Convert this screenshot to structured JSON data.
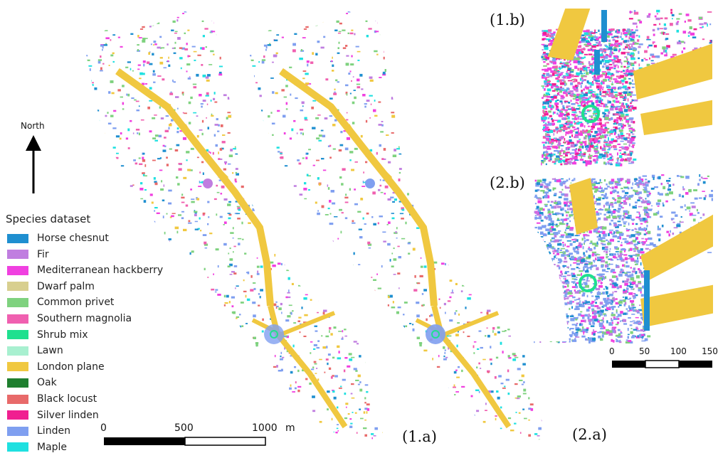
{
  "north_arrow": {
    "label": "North"
  },
  "legend": {
    "title": "Species dataset",
    "items": [
      {
        "label": "Horse chesnut",
        "color": "#1f8fd0"
      },
      {
        "label": "Fir",
        "color": "#c07ee0"
      },
      {
        "label": "Mediterranean hackberry",
        "color": "#f040e0"
      },
      {
        "label": "Dwarf palm",
        "color": "#d8cf8f"
      },
      {
        "label": "Common privet",
        "color": "#7fd27f"
      },
      {
        "label": "Southern magnolia",
        "color": "#f060b0"
      },
      {
        "label": "Shrub mix",
        "color": "#1fe08f"
      },
      {
        "label": "Lawn",
        "color": "#a8f0d0"
      },
      {
        "label": "London plane",
        "color": "#f0c840"
      },
      {
        "label": "Oak",
        "color": "#1f7f2f"
      },
      {
        "label": "Black locust",
        "color": "#e86a6a"
      },
      {
        "label": "Silver linden",
        "color": "#f01f90"
      },
      {
        "label": "Linden",
        "color": "#7f9ff0"
      },
      {
        "label": "Maple",
        "color": "#1fe0e0"
      }
    ]
  },
  "scale_bar_main": {
    "ticks": [
      "0",
      "500",
      "1000"
    ],
    "unit": "m"
  },
  "scale_bar_inset": {
    "ticks": [
      "0",
      "50",
      "100",
      "150"
    ]
  },
  "panels": {
    "map_1a": "(1.a)",
    "map_2a": "(2.a)",
    "inset_1b": "(1.b)",
    "inset_2b": "(2.b)"
  }
}
